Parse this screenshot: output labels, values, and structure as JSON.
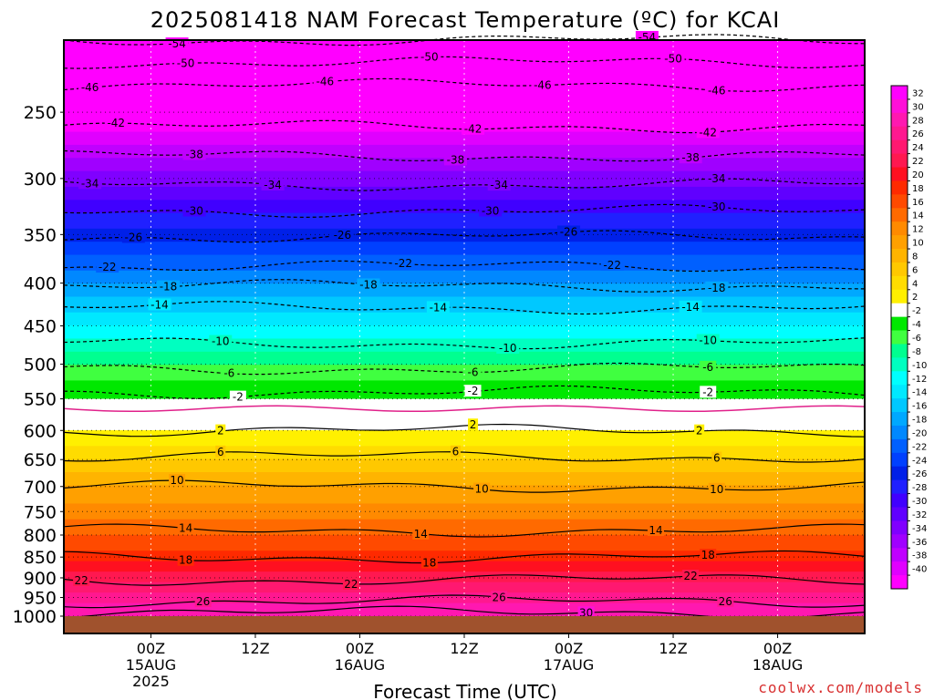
{
  "chart_data": {
    "type": "heatmap",
    "title": "2025081418 NAM Forecast Temperature (ºC) for KCAI",
    "xlabel": "Forecast Time (UTC)",
    "ylabel": "",
    "watermark": "coolwx.com/models",
    "y_scale": "log-pressure",
    "ylim": [
      1000,
      200
    ],
    "xlim_hours": [
      -10,
      60
    ],
    "y_ticks": [
      250,
      300,
      350,
      400,
      450,
      500,
      550,
      600,
      650,
      700,
      750,
      800,
      850,
      900,
      950,
      1000
    ],
    "x_ticks": [
      {
        "hour": 0,
        "labels": [
          "00Z",
          "15AUG",
          "2025"
        ]
      },
      {
        "hour": 12,
        "labels": [
          "12Z"
        ]
      },
      {
        "hour": 24,
        "labels": [
          "00Z",
          "16AUG"
        ]
      },
      {
        "hour": 36,
        "labels": [
          "12Z"
        ]
      },
      {
        "hour": 48,
        "labels": [
          "00Z",
          "17AUG"
        ]
      },
      {
        "hour": 60,
        "labels": [
          "12Z"
        ]
      },
      {
        "hour": 72,
        "labels": [
          "00Z",
          "18AUG"
        ]
      }
    ],
    "grid": true,
    "colorbar": {
      "labels": [
        "32",
        "30",
        "28",
        "26",
        "24",
        "22",
        "20",
        "18",
        "16",
        "14",
        "12",
        "10",
        "8",
        "6",
        "4",
        "2",
        "-2",
        "-4",
        "-6",
        "-8",
        "-10",
        "-12",
        "-14",
        "-16",
        "-18",
        "-20",
        "-22",
        "-24",
        "-26",
        "-28",
        "-30",
        "-32",
        "-34",
        "-36",
        "-38",
        "-40"
      ],
      "colors": [
        "#ff00ff",
        "#ff10d8",
        "#ff18b0",
        "#ff1890",
        "#ff1870",
        "#ff1850",
        "#ff1020",
        "#ff2a00",
        "#ff4a00",
        "#ff6a00",
        "#ff8a00",
        "#ffa000",
        "#ffb400",
        "#ffc800",
        "#ffdc00",
        "#fff000",
        "#ffffff",
        "#00e800",
        "#40ff40",
        "#00ff90",
        "#00ffc0",
        "#00ffff",
        "#00e8ff",
        "#00c8ff",
        "#00a8ff",
        "#0088ff",
        "#0060ff",
        "#0040ff",
        "#0020e8",
        "#2020ff",
        "#4000ff",
        "#6000ff",
        "#8000ff",
        "#a000ff",
        "#c000ff",
        "#e000ff",
        "#ff00ff"
      ]
    },
    "levels": [
      {
        "p": 1000,
        "temp": 30
      },
      {
        "p": 950,
        "temp": 27
      },
      {
        "p": 900,
        "temp": 23
      },
      {
        "p": 850,
        "temp": 19
      },
      {
        "p": 800,
        "temp": 16
      },
      {
        "p": 750,
        "temp": 13
      },
      {
        "p": 700,
        "temp": 10
      },
      {
        "p": 650,
        "temp": 6
      },
      {
        "p": 600,
        "temp": 2
      },
      {
        "p": 550,
        "temp": -2
      },
      {
        "p": 500,
        "temp": -6
      },
      {
        "p": 450,
        "temp": -12
      },
      {
        "p": 400,
        "temp": -18
      },
      {
        "p": 350,
        "temp": -25
      },
      {
        "p": 300,
        "temp": -33
      },
      {
        "p": 250,
        "temp": -43
      },
      {
        "p": 200,
        "temp": -54
      }
    ],
    "contours": [
      {
        "value": -54,
        "p": 205,
        "labels": [
          {
            "h": 3,
            "text": "-54"
          },
          {
            "h": 57,
            "text": "-54"
          }
        ]
      },
      {
        "value": -50,
        "p": 218,
        "labels": [
          {
            "h": 4,
            "text": "-50"
          },
          {
            "h": 32,
            "text": "-50"
          },
          {
            "h": 60,
            "text": "-50"
          }
        ]
      },
      {
        "value": -46,
        "p": 232,
        "labels": [
          {
            "h": -7,
            "text": "-46"
          },
          {
            "h": 20,
            "text": "-46"
          },
          {
            "h": 45,
            "text": "-46"
          },
          {
            "h": 65,
            "text": "-46"
          }
        ]
      },
      {
        "value": -42,
        "p": 260,
        "labels": [
          {
            "h": -4,
            "text": "-42"
          },
          {
            "h": 37,
            "text": "-42"
          },
          {
            "h": 64,
            "text": "-42"
          }
        ]
      },
      {
        "value": -38,
        "p": 282,
        "labels": [
          {
            "h": 5,
            "text": "-38"
          },
          {
            "h": 35,
            "text": "-38"
          },
          {
            "h": 62,
            "text": "-38"
          }
        ]
      },
      {
        "value": -34,
        "p": 305,
        "labels": [
          {
            "h": -7,
            "text": "-34"
          },
          {
            "h": 14,
            "text": "-34"
          },
          {
            "h": 40,
            "text": "-34"
          },
          {
            "h": 65,
            "text": "-34"
          }
        ]
      },
      {
        "value": -30,
        "p": 328,
        "labels": [
          {
            "h": 5,
            "text": "-30"
          },
          {
            "h": 39,
            "text": "-30"
          },
          {
            "h": 65,
            "text": "-30"
          }
        ]
      },
      {
        "value": -26,
        "p": 352,
        "labels": [
          {
            "h": -2,
            "text": "-26"
          },
          {
            "h": 22,
            "text": "-26"
          },
          {
            "h": 48,
            "text": "-26"
          }
        ]
      },
      {
        "value": -22,
        "p": 382,
        "labels": [
          {
            "h": -5,
            "text": "-22"
          },
          {
            "h": 29,
            "text": "-22"
          },
          {
            "h": 53,
            "text": "-22"
          }
        ]
      },
      {
        "value": -18,
        "p": 403,
        "labels": [
          {
            "h": 2,
            "text": "-18"
          },
          {
            "h": 25,
            "text": "-18"
          },
          {
            "h": 65,
            "text": "-18"
          }
        ]
      },
      {
        "value": -14,
        "p": 428,
        "labels": [
          {
            "h": 1,
            "text": "-14"
          },
          {
            "h": 33,
            "text": "-14"
          },
          {
            "h": 62,
            "text": "-14"
          }
        ]
      },
      {
        "value": -10,
        "p": 472,
        "labels": [
          {
            "h": 8,
            "text": "-10"
          },
          {
            "h": 41,
            "text": "-10"
          },
          {
            "h": 64,
            "text": "-10"
          }
        ]
      },
      {
        "value": -6,
        "p": 506,
        "labels": [
          {
            "h": 9,
            "text": "-6"
          },
          {
            "h": 37,
            "text": "-6"
          },
          {
            "h": 64,
            "text": "-6"
          }
        ]
      },
      {
        "value": -2,
        "p": 540,
        "labels": [
          {
            "h": 10,
            "text": "-2"
          },
          {
            "h": 37,
            "text": "-2"
          },
          {
            "h": 64,
            "text": "-2"
          }
        ]
      },
      {
        "value": 2,
        "p": 600,
        "labels": [
          {
            "h": 8,
            "text": "2"
          },
          {
            "h": 37,
            "text": "2"
          },
          {
            "h": 63,
            "text": "2"
          }
        ]
      },
      {
        "value": 6,
        "p": 645,
        "labels": [
          {
            "h": 8,
            "text": "6"
          },
          {
            "h": 35,
            "text": "6"
          },
          {
            "h": 65,
            "text": "6"
          }
        ]
      },
      {
        "value": 10,
        "p": 700,
        "labels": [
          {
            "h": 3,
            "text": "10"
          },
          {
            "h": 38,
            "text": "10"
          },
          {
            "h": 65,
            "text": "10"
          }
        ]
      },
      {
        "value": 14,
        "p": 790,
        "labels": [
          {
            "h": 4,
            "text": "14"
          },
          {
            "h": 31,
            "text": "14"
          },
          {
            "h": 58,
            "text": "14"
          }
        ]
      },
      {
        "value": 18,
        "p": 850,
        "labels": [
          {
            "h": 4,
            "text": "18"
          },
          {
            "h": 32,
            "text": "18"
          },
          {
            "h": 64,
            "text": "18"
          }
        ]
      },
      {
        "value": 22,
        "p": 905,
        "labels": [
          {
            "h": -8,
            "text": "22"
          },
          {
            "h": 23,
            "text": "22"
          },
          {
            "h": 62,
            "text": "22"
          }
        ]
      },
      {
        "value": 26,
        "p": 960,
        "labels": [
          {
            "h": 6,
            "text": "26"
          },
          {
            "h": 40,
            "text": "26"
          },
          {
            "h": 66,
            "text": "26"
          }
        ]
      },
      {
        "value": 30,
        "p": 990,
        "labels": [
          {
            "h": 50,
            "text": "30"
          }
        ]
      }
    ]
  }
}
